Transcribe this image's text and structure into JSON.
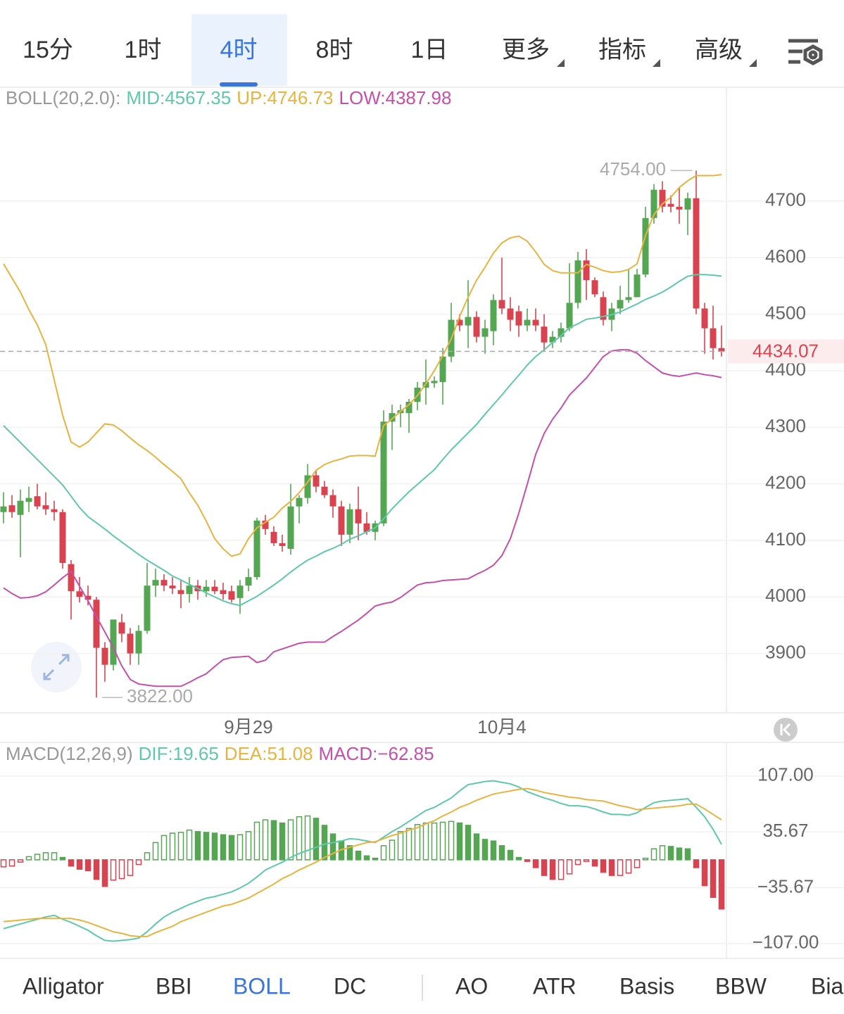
{
  "tabs": {
    "items": [
      "15分",
      "1时",
      "4时",
      "8时",
      "1日",
      "更多",
      "指标",
      "高级"
    ],
    "active": 2
  },
  "chart_data": [
    {
      "type": "candlestick",
      "indicator": "BOLL(20,2.0):",
      "up_color": "#54a653",
      "down_color": "#d9434f",
      "grid": true,
      "ylim": [
        3795,
        4900
      ],
      "yticks": [
        3900,
        4000,
        4100,
        4200,
        4300,
        4400,
        4500,
        4600,
        4700
      ],
      "categories": [
        null,
        null,
        null,
        null,
        null,
        null,
        null,
        null,
        null,
        null,
        null,
        null,
        null,
        null,
        null,
        null,
        null,
        null,
        null,
        null,
        null,
        null,
        null,
        null,
        null,
        null,
        null,
        null,
        null,
        "9月29",
        null,
        null,
        null,
        null,
        null,
        null,
        null,
        null,
        null,
        null,
        null,
        null,
        null,
        null,
        null,
        null,
        null,
        null,
        null,
        null,
        null,
        null,
        null,
        null,
        null,
        null,
        null,
        null,
        null,
        "10月4",
        null,
        null,
        null,
        null,
        null,
        null,
        null,
        null,
        null,
        null,
        null,
        null,
        null,
        null,
        null,
        null,
        null,
        null,
        null,
        null,
        null,
        null,
        null,
        null,
        null,
        null
      ],
      "open": [
        4150,
        4162,
        4145,
        4168,
        4178,
        4162,
        4155,
        4150,
        4058,
        4010,
        4002,
        3995,
        3910,
        3880,
        3955,
        3935,
        3900,
        3940,
        4020,
        4030,
        4020,
        4012,
        4005,
        4020,
        4010,
        4018,
        4012,
        4010,
        3998,
        4020,
        4035,
        4135,
        4115,
        4095,
        4085,
        4160,
        4175,
        4215,
        4195,
        4180,
        4160,
        4110,
        4155,
        4130,
        4115,
        4130,
        4310,
        4325,
        4325,
        4345,
        4370,
        4378,
        4380,
        4425,
        4490,
        4480,
        4495,
        4460,
        4470,
        4525,
        4510,
        4505,
        4480,
        4490,
        4478,
        4450,
        4460,
        4475,
        4520,
        4595,
        4560,
        4530,
        4490,
        4510,
        4525,
        4530,
        4570,
        4670,
        4720,
        4695,
        4690,
        4685,
        4705,
        4510,
        4475,
        4440
      ],
      "high": [
        4185,
        4180,
        4190,
        4195,
        4200,
        4185,
        4170,
        4155,
        4065,
        4035,
        4020,
        4000,
        3920,
        3960,
        3970,
        3945,
        3950,
        4060,
        4050,
        4040,
        4035,
        4030,
        4035,
        4030,
        4030,
        4030,
        4025,
        4020,
        4030,
        4050,
        4140,
        4145,
        4125,
        4110,
        4200,
        4180,
        4235,
        4225,
        4205,
        4190,
        4170,
        4165,
        4195,
        4150,
        4135,
        4330,
        4340,
        4340,
        4350,
        4380,
        4420,
        4390,
        4440,
        4520,
        4500,
        4560,
        4505,
        4490,
        4535,
        4600,
        4530,
        4515,
        4510,
        4510,
        4500,
        4470,
        4485,
        4590,
        4610,
        4615,
        4565,
        4540,
        4520,
        4550,
        4580,
        4580,
        4690,
        4730,
        4735,
        4710,
        4725,
        4715,
        4754,
        4520,
        4515,
        4480
      ],
      "low": [
        4130,
        4140,
        4070,
        4150,
        4155,
        4145,
        4135,
        4050,
        3960,
        3990,
        3985,
        3822,
        3850,
        3870,
        3920,
        3880,
        3880,
        3935,
        4000,
        4010,
        4005,
        3980,
        3990,
        3995,
        4000,
        4005,
        3995,
        3990,
        3970,
        4010,
        4030,
        4110,
        4090,
        4080,
        4075,
        4130,
        4165,
        4185,
        4175,
        4140,
        4090,
        4095,
        4100,
        4110,
        4100,
        4125,
        4260,
        4300,
        4290,
        4330,
        4340,
        4370,
        4340,
        4415,
        4470,
        4440,
        4450,
        4430,
        4445,
        4500,
        4470,
        4460,
        4470,
        4470,
        4435,
        4440,
        4450,
        4470,
        4510,
        4525,
        4530,
        4480,
        4470,
        4500,
        4520,
        4530,
        4565,
        4660,
        4680,
        4680,
        4660,
        4640,
        4500,
        4430,
        4420,
        4425
      ],
      "close": [
        4160,
        4150,
        4170,
        4175,
        4160,
        4155,
        4150,
        4060,
        4010,
        4000,
        3995,
        3910,
        3880,
        3960,
        3935,
        3900,
        3940,
        4020,
        4030,
        4020,
        4015,
        4005,
        4020,
        4010,
        4018,
        4010,
        4005,
        3995,
        4020,
        4035,
        4135,
        4120,
        4095,
        4090,
        4160,
        4175,
        4215,
        4195,
        4180,
        4160,
        4110,
        4155,
        4130,
        4115,
        4130,
        4310,
        4325,
        4330,
        4345,
        4370,
        4380,
        4382,
        4425,
        4490,
        4480,
        4495,
        4460,
        4475,
        4525,
        4510,
        4490,
        4480,
        4490,
        4480,
        4450,
        4460,
        4475,
        4520,
        4595,
        4560,
        4535,
        4490,
        4510,
        4525,
        4530,
        4570,
        4670,
        4720,
        4690,
        4690,
        4685,
        4705,
        4510,
        4475,
        4440,
        4434.07
      ],
      "lines": [
        {
          "name": "MID:4567.35",
          "color": "#5ec9a8",
          "values": [
            4303,
            4288,
            4273,
            4258,
            4243,
            4228,
            4213,
            4198,
            4178,
            4158,
            4142,
            4131,
            4120,
            4108,
            4097,
            4086,
            4075,
            4065,
            4056,
            4047,
            4037,
            4030,
            4022,
            4015,
            4007,
            4000,
            3993,
            3988,
            3985,
            3993,
            4001,
            4011,
            4021,
            4032,
            4044,
            4055,
            4065,
            4072,
            4080,
            4086,
            4093,
            4102,
            4108,
            4115,
            4122,
            4138,
            4156,
            4171,
            4186,
            4199,
            4212,
            4225,
            4243,
            4260,
            4275,
            4290,
            4305,
            4323,
            4340,
            4357,
            4375,
            4392,
            4410,
            4425,
            4437,
            4450,
            4462,
            4476,
            4483,
            4491,
            4493,
            4496,
            4499,
            4504,
            4511,
            4518,
            4526,
            4532,
            4539,
            4548,
            4558,
            4567,
            4570,
            4570,
            4569,
            4567.35
          ]
        },
        {
          "name": "UP:4746.73",
          "color": "#e8b33e",
          "values": [
            4589,
            4564,
            4539,
            4508,
            4481,
            4446,
            4384,
            4321,
            4274,
            4265,
            4274,
            4290,
            4306,
            4304,
            4294,
            4281,
            4269,
            4259,
            4247,
            4234,
            4222,
            4209,
            4184,
            4162,
            4134,
            4103,
            4085,
            4072,
            4076,
            4103,
            4122,
            4132,
            4141,
            4157,
            4169,
            4184,
            4203,
            4224,
            4234,
            4240,
            4244,
            4249,
            4250,
            4250,
            4249,
            4303,
            4315,
            4328,
            4340,
            4356,
            4377,
            4400,
            4427,
            4456,
            4496,
            4530,
            4560,
            4583,
            4608,
            4626,
            4635,
            4638,
            4629,
            4610,
            4588,
            4577,
            4573,
            4573,
            4573,
            4588,
            4583,
            4577,
            4574,
            4575,
            4579,
            4589,
            4639,
            4676,
            4695,
            4707,
            4724,
            4736,
            4745,
            4745,
            4745,
            4746.73
          ]
        },
        {
          "name": "LOW:4387.98",
          "color": "#c64fac",
          "values": [
            4016,
            4006,
            3998,
            3999,
            4002,
            4009,
            4021,
            4034,
            4045,
            4019,
            3993,
            3965,
            3938,
            3910,
            3878,
            3854,
            3846,
            3844,
            3842,
            3842,
            3842,
            3842,
            3849,
            3857,
            3864,
            3877,
            3889,
            3893,
            3894,
            3895,
            3884,
            3888,
            3903,
            3908,
            3913,
            3918,
            3920,
            3920,
            3920,
            3930,
            3939,
            3949,
            3959,
            3971,
            3984,
            3988,
            3991,
            3999,
            4010,
            4021,
            4025,
            4026,
            4029,
            4030,
            4031,
            4032,
            4040,
            4047,
            4056,
            4073,
            4103,
            4148,
            4199,
            4252,
            4289,
            4314,
            4334,
            4357,
            4372,
            4387,
            4406,
            4425,
            4435,
            4437,
            4437,
            4431,
            4418,
            4407,
            4396,
            4392,
            4390,
            4393,
            4396,
            4393,
            4391,
            4387.98
          ]
        }
      ],
      "high_label": {
        "value": 4754,
        "label": "4754.00"
      },
      "low_label": {
        "value": 3822,
        "label": "3822.00"
      },
      "last_price": {
        "value": 4434.07,
        "label": "4434.07"
      }
    },
    {
      "type": "macd",
      "indicator": "MACD(12,26,9)",
      "grid": true,
      "ylim": [
        -126,
        150
      ],
      "yticks": [
        {
          "value": 107,
          "label": "107.00"
        },
        {
          "value": 35.67,
          "label": "35.67"
        },
        {
          "value": -35.67,
          "label": "−35.67"
        },
        {
          "value": -107,
          "label": "−107.00"
        }
      ],
      "series": [
        {
          "name": "DIF:19.65",
          "color": "#5ec9a8",
          "values": [
            -88,
            -85,
            -82,
            -79,
            -76,
            -73,
            -71,
            -76,
            -80,
            -85,
            -90,
            -97,
            -103,
            -104,
            -103,
            -102,
            -100,
            -92,
            -82,
            -73,
            -67,
            -62,
            -57,
            -53,
            -49,
            -47,
            -44,
            -41,
            -36,
            -30,
            -22,
            -13,
            -8,
            -3,
            3,
            8,
            12,
            16,
            20,
            22,
            24,
            27,
            26,
            24,
            22,
            29,
            36,
            42,
            49,
            56,
            63,
            67,
            73,
            79,
            88,
            96,
            98,
            100,
            101,
            99,
            97,
            93,
            87,
            83,
            79,
            76,
            72,
            69,
            69,
            68,
            65,
            61,
            58,
            58,
            57,
            60,
            67,
            73,
            75,
            76,
            77,
            78,
            67,
            55,
            39,
            19.65
          ]
        },
        {
          "name": "DEA:51.08",
          "color": "#e8b33e",
          "values": [
            -79,
            -78,
            -77,
            -76,
            -75,
            -75,
            -75,
            -75,
            -75,
            -77,
            -80,
            -84,
            -88,
            -92,
            -94,
            -97,
            -98,
            -98,
            -93,
            -89,
            -85,
            -79,
            -75,
            -71,
            -67,
            -63,
            -59,
            -57,
            -53,
            -49,
            -43,
            -37,
            -31,
            -24,
            -19,
            -13,
            -8,
            -3,
            3,
            8,
            13,
            16,
            19,
            22,
            23,
            27,
            31,
            34,
            38,
            41,
            46,
            50,
            56,
            61,
            67,
            71,
            76,
            80,
            84,
            86,
            88,
            90,
            91,
            89,
            86,
            84,
            82,
            80,
            79,
            77,
            76,
            75,
            72,
            69,
            67,
            64,
            65,
            66,
            67,
            68,
            69,
            71,
            71,
            65,
            58,
            51.08
          ]
        },
        {
          "name": "MACD:−62.85",
          "type": "bar",
          "color": "#c64fac",
          "up_color": "#54a653",
          "down_color": "#d9434f",
          "values": [
            -9,
            -8,
            -3,
            4,
            7,
            9,
            9,
            3,
            -8,
            -12,
            -14,
            -25,
            -34,
            -26,
            -24,
            -20,
            -6,
            9,
            22,
            31,
            34,
            35,
            38,
            36,
            35,
            34,
            32,
            31,
            32,
            36,
            48,
            51,
            50,
            47,
            51,
            55,
            56,
            53,
            44,
            33,
            24,
            18,
            11,
            5,
            2,
            18,
            25,
            36,
            40,
            45,
            47,
            47,
            48,
            49,
            47,
            44,
            33,
            26,
            24,
            18,
            12,
            3,
            -2,
            -10,
            -20,
            -25,
            -25,
            -18,
            -6,
            -2,
            -8,
            -16,
            -20,
            -20,
            -17,
            -10,
            2,
            14,
            18,
            17,
            15,
            14,
            -10,
            -33,
            -48,
            -62.85
          ]
        }
      ]
    }
  ],
  "indicator_tabs": {
    "items": [
      "Alligator",
      "BBI",
      "BOLL",
      "DC",
      "AO",
      "ATR",
      "Basis",
      "BBW",
      "Bia"
    ],
    "active": 2
  }
}
